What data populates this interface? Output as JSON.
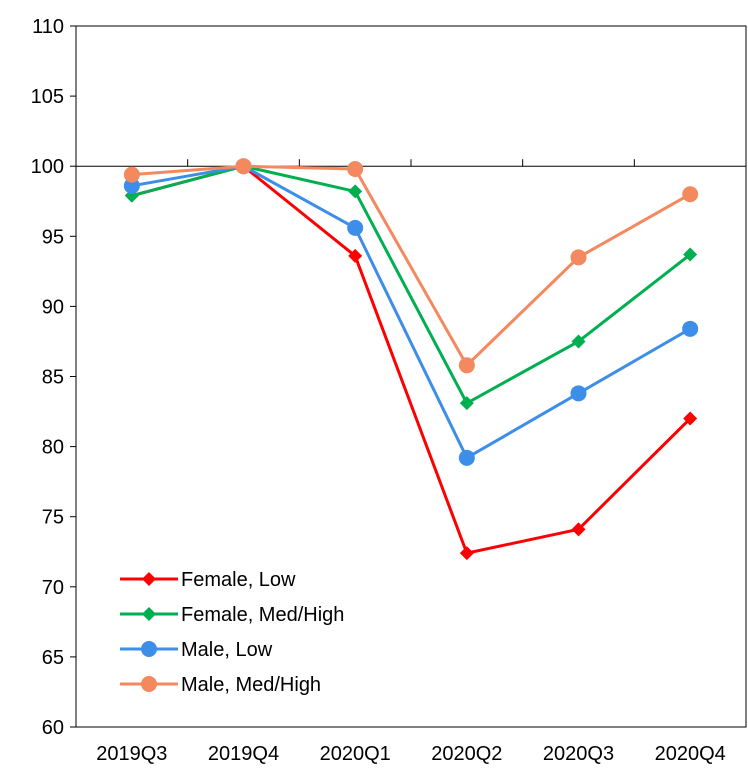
{
  "chart_data": {
    "type": "line",
    "title": "",
    "xlabel": "",
    "ylabel": "",
    "ylim": [
      60,
      110
    ],
    "yticks": [
      60,
      65,
      70,
      75,
      80,
      85,
      90,
      95,
      100,
      105,
      110
    ],
    "categories": [
      "2019Q3",
      "2019Q4",
      "2020Q1",
      "2020Q2",
      "2020Q3",
      "2020Q4"
    ],
    "reference_line": 100,
    "grid": false,
    "legend_position": "bottom-left",
    "series": [
      {
        "name": "Female, Low",
        "color": "#ff0000",
        "marker": "diamond",
        "values": [
          97.9,
          100.0,
          93.6,
          72.4,
          74.1,
          82.0
        ]
      },
      {
        "name": "Female, Med/High",
        "color": "#00b050",
        "marker": "diamond",
        "values": [
          97.9,
          100.0,
          98.2,
          83.1,
          87.5,
          93.7
        ]
      },
      {
        "name": "Male, Low",
        "color": "#3d8ee8",
        "marker": "circle",
        "values": [
          98.6,
          100.0,
          95.6,
          79.2,
          83.8,
          88.4
        ]
      },
      {
        "name": "Male, Med/High",
        "color": "#f4895f",
        "marker": "circle",
        "values": [
          99.4,
          100.0,
          99.8,
          85.8,
          93.5,
          98.0
        ]
      }
    ]
  }
}
